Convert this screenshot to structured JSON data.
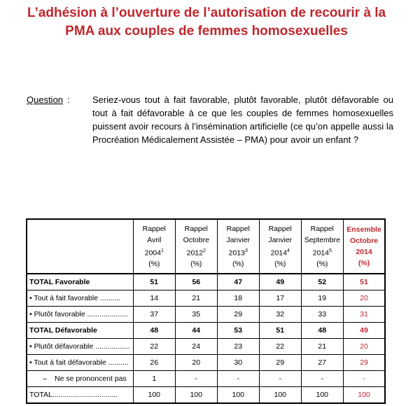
{
  "title_line1": "L’adhésion à l’ouverture de l’autorisation de recourir à la",
  "title_line2": "PMA aux couples de femmes homosexuelles",
  "question": {
    "label": "Question",
    "colon": ":",
    "text": "Seriez-vous tout à fait favorable, plutôt favorable, plutôt défavorable ou tout à fait défavorable à ce que les couples de femmes homosexuelles puissent avoir recours à l’insémination artificielle (ce qu’on appelle aussi la Procréation Médicalement Assistée – PMA) pour avoir un enfant ?"
  },
  "table": {
    "headers": [
      {
        "l1": "Rappel",
        "l2": "Avril",
        "l3": "2004",
        "sup": "1",
        "l4": "(%)"
      },
      {
        "l1": "Rappel",
        "l2": "Octobre",
        "l3": "2012",
        "sup": "2",
        "l4": "(%)"
      },
      {
        "l1": "Rappel",
        "l2": "Janvier",
        "l3": "2013",
        "sup": "3",
        "l4": "(%)"
      },
      {
        "l1": "Rappel",
        "l2": "Janvier",
        "l3": "2014",
        "sup": "4",
        "l4": "(%)"
      },
      {
        "l1": "Rappel",
        "l2": "Septembre",
        "l3": "2014",
        "sup": "5",
        "l4": "(%)"
      },
      {
        "l1": "Ensemble",
        "l2": "Octobre",
        "l3": "2014",
        "sup": "",
        "l4": "(%)"
      }
    ],
    "rows": [
      {
        "label": "TOTAL Favorable",
        "values": [
          "51",
          "56",
          "47",
          "49",
          "52",
          "51"
        ]
      },
      {
        "label": "• Tout à fait favorable ..........",
        "values": [
          "14",
          "21",
          "18",
          "17",
          "19",
          "20"
        ]
      },
      {
        "label": "• Plutôt favorable ....................",
        "values": [
          "37",
          "35",
          "29",
          "32",
          "33",
          "31"
        ]
      },
      {
        "label": "TOTAL Défavorable",
        "values": [
          "48",
          "44",
          "53",
          "51",
          "48",
          "49"
        ]
      },
      {
        "label": "• Plutôt défavorable .................",
        "values": [
          "22",
          "24",
          "23",
          "22",
          "21",
          "20"
        ]
      },
      {
        "label": "• Tout à fait défavorable ..........",
        "values": [
          "26",
          "20",
          "30",
          "29",
          "27",
          "29"
        ]
      },
      {
        "label_dash": "–",
        "label": "Ne se prononcent pas",
        "values": [
          "1",
          "-",
          "-",
          "-",
          "-",
          "-"
        ]
      },
      {
        "label": "TOTAL................................",
        "values": [
          "100",
          "100",
          "100",
          "100",
          "100",
          "100"
        ]
      }
    ]
  },
  "colors": {
    "accent_red": "#c0272d"
  }
}
